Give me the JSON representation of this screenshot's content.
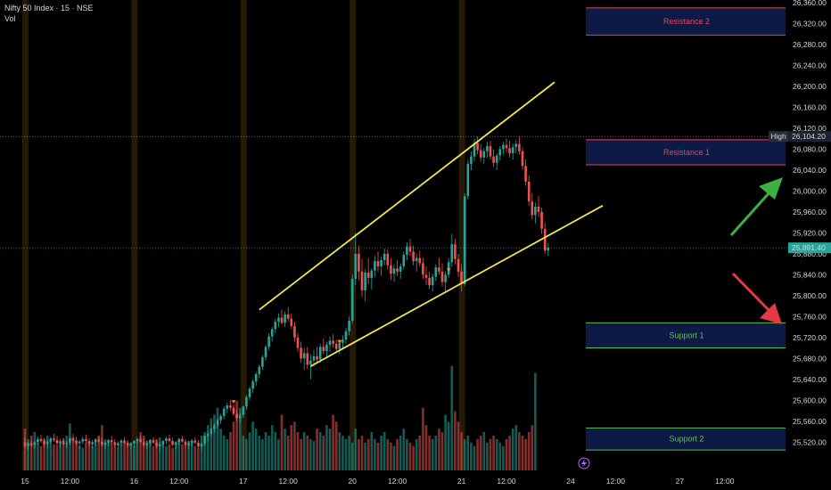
{
  "header": {
    "symbol_line": "Nifty 50 Index · 15 · NSE",
    "volume_label": "Vol"
  },
  "colors": {
    "up": "#26a69a",
    "down": "#ef5350",
    "trendline": "#f4e74b",
    "zone_fill": "#0d1a45",
    "resistance_border": "#e8435a",
    "support_border": "#5cc24f",
    "resistance_text": "#e8435a",
    "support_text": "#5cc24f",
    "arrow_up": "#3cb043",
    "arrow_down": "#e63946",
    "session_band": "#2a1d05",
    "last_price_tag": "#26a69a",
    "high_tag": "#2a2e39"
  },
  "chart_data": {
    "type": "candlestick",
    "y_axis": {
      "min": 25500,
      "max": 26360,
      "ticks": [
        "26,360.00",
        "26,320.00",
        "26,280.00",
        "26,240.00",
        "26,200.00",
        "26,160.00",
        "26,120.00",
        "26,080.00",
        "26,040.00",
        "26,000.00",
        "25,960.00",
        "25,920.00",
        "25,880.00",
        "25,840.00",
        "25,800.00",
        "25,760.00",
        "25,720.00",
        "25,680.00",
        "25,640.00",
        "25,600.00",
        "25,560.00",
        "25,520.00"
      ]
    },
    "x_axis": {
      "ticks": [
        {
          "label": "15",
          "bar": 0
        },
        {
          "label": "12:00",
          "bar": 14
        },
        {
          "label": "16",
          "bar": 34
        },
        {
          "label": "12:00",
          "bar": 48
        },
        {
          "label": "17",
          "bar": 68
        },
        {
          "label": "12:00",
          "bar": 82
        },
        {
          "label": "20",
          "bar": 102
        },
        {
          "label": "12:00",
          "bar": 116
        },
        {
          "label": "21",
          "bar": 136
        },
        {
          "label": "12:00",
          "bar": 150
        },
        {
          "label": "24",
          "bar": 170
        },
        {
          "label": "12:00",
          "bar": 184
        },
        {
          "label": "27",
          "bar": 204
        },
        {
          "label": "12:00",
          "bar": 218
        }
      ]
    },
    "last_price": {
      "value": 25891.4,
      "label": "25,891.40"
    },
    "high": {
      "value": 26104.2,
      "label": "26,104.20",
      "tag": "High"
    },
    "zones": [
      {
        "name": "Resistance 2",
        "kind": "resistance",
        "top": 26350,
        "bottom": 26298
      },
      {
        "name": "Resistance 1",
        "kind": "resistance",
        "top": 26098,
        "bottom": 26050
      },
      {
        "name": "Support 1",
        "kind": "support",
        "top": 25748,
        "bottom": 25700
      },
      {
        "name": "Support 2",
        "kind": "support",
        "top": 25547,
        "bottom": 25505
      }
    ],
    "trendlines": [
      {
        "x1": 73,
        "y1": 25773,
        "x2": 165,
        "y2": 26208
      },
      {
        "x1": 89,
        "y1": 25665,
        "x2": 180,
        "y2": 25972
      }
    ],
    "ohlc": [
      [
        25520,
        25528,
        25508,
        25512
      ],
      [
        25512,
        25520,
        25505,
        25518
      ],
      [
        25518,
        25524,
        25510,
        25514
      ],
      [
        25514,
        25522,
        25508,
        25520
      ],
      [
        25520,
        25530,
        25515,
        25526
      ],
      [
        25526,
        25534,
        25518,
        25522
      ],
      [
        25522,
        25528,
        25510,
        25516
      ],
      [
        25516,
        25524,
        25508,
        25521
      ],
      [
        25521,
        25530,
        25516,
        25527
      ],
      [
        25527,
        25536,
        25520,
        25524
      ],
      [
        25524,
        25532,
        25512,
        25518
      ],
      [
        25518,
        25526,
        25510,
        25522
      ],
      [
        25522,
        25528,
        25514,
        25516
      ],
      [
        25516,
        25522,
        25508,
        25519
      ],
      [
        25519,
        25530,
        25514,
        25527
      ],
      [
        25527,
        25536,
        25520,
        25523
      ],
      [
        25523,
        25530,
        25514,
        25518
      ],
      [
        25518,
        25524,
        25508,
        25521
      ],
      [
        25521,
        25530,
        25516,
        25526
      ],
      [
        25526,
        25534,
        25518,
        25522
      ],
      [
        25522,
        25528,
        25512,
        25516
      ],
      [
        25516,
        25524,
        25508,
        25520
      ],
      [
        25520,
        25528,
        25514,
        25525
      ],
      [
        25525,
        25532,
        25518,
        25521
      ],
      [
        25521,
        25528,
        25512,
        25515
      ],
      [
        25515,
        25522,
        25506,
        25519
      ],
      [
        25519,
        25526,
        25512,
        25524
      ],
      [
        25524,
        25532,
        25518,
        25520
      ],
      [
        25520,
        25526,
        25510,
        25514
      ],
      [
        25514,
        25522,
        25508,
        25518
      ],
      [
        25518,
        25526,
        25512,
        25523
      ],
      [
        25523,
        25530,
        25516,
        25519
      ],
      [
        25519,
        25524,
        25510,
        25513
      ],
      [
        25513,
        25520,
        25506,
        25517
      ],
      [
        25517,
        25524,
        25510,
        25522
      ],
      [
        25522,
        25530,
        25516,
        25526
      ],
      [
        25526,
        25532,
        25518,
        25520
      ],
      [
        25520,
        25526,
        25510,
        25514
      ],
      [
        25514,
        25522,
        25506,
        25518
      ],
      [
        25518,
        25526,
        25512,
        25524
      ],
      [
        25524,
        25530,
        25516,
        25519
      ],
      [
        25519,
        25524,
        25508,
        25512
      ],
      [
        25512,
        25520,
        25504,
        25516
      ],
      [
        25516,
        25524,
        25510,
        25522
      ],
      [
        25522,
        25530,
        25516,
        25527
      ],
      [
        25527,
        25534,
        25518,
        25522
      ],
      [
        25522,
        25528,
        25512,
        25515
      ],
      [
        25515,
        25522,
        25506,
        25520
      ],
      [
        25520,
        25528,
        25514,
        25526
      ],
      [
        25526,
        25532,
        25518,
        25521
      ],
      [
        25521,
        25526,
        25510,
        25514
      ],
      [
        25514,
        25522,
        25506,
        25518
      ],
      [
        25518,
        25526,
        25512,
        25523
      ],
      [
        25523,
        25530,
        25516,
        25519
      ],
      [
        25519,
        25524,
        25508,
        25512
      ],
      [
        25512,
        25520,
        25504,
        25517
      ],
      [
        25517,
        25528,
        25512,
        25532
      ],
      [
        25532,
        25540,
        25522,
        25536
      ],
      [
        25536,
        25548,
        25530,
        25545
      ],
      [
        25545,
        25556,
        25538,
        25552
      ],
      [
        25552,
        25566,
        25546,
        25562
      ],
      [
        25562,
        25574,
        25555,
        25570
      ],
      [
        25570,
        25588,
        25564,
        25584
      ],
      [
        25584,
        25596,
        25576,
        25590
      ],
      [
        25590,
        25600,
        25580,
        25586
      ],
      [
        25586,
        25592,
        25570,
        25574
      ],
      [
        25574,
        25582,
        25560,
        25566
      ],
      [
        25566,
        25576,
        25556,
        25572
      ],
      [
        25572,
        25590,
        25566,
        25588
      ],
      [
        25588,
        25610,
        25582,
        25606
      ],
      [
        25606,
        25626,
        25600,
        25622
      ],
      [
        25622,
        25640,
        25614,
        25636
      ],
      [
        25636,
        25654,
        25628,
        25650
      ],
      [
        25650,
        25668,
        25642,
        25664
      ],
      [
        25664,
        25686,
        25658,
        25682
      ],
      [
        25682,
        25706,
        25676,
        25702
      ],
      [
        25702,
        25728,
        25696,
        25722
      ],
      [
        25722,
        25740,
        25712,
        25736
      ],
      [
        25736,
        25756,
        25728,
        25750
      ],
      [
        25750,
        25766,
        25740,
        25758
      ],
      [
        25758,
        25774,
        25745,
        25748
      ],
      [
        25748,
        25770,
        25740,
        25764
      ],
      [
        25764,
        25778,
        25750,
        25756
      ],
      [
        25756,
        25766,
        25736,
        25742
      ],
      [
        25742,
        25750,
        25712,
        25720
      ],
      [
        25720,
        25728,
        25692,
        25700
      ],
      [
        25700,
        25712,
        25672,
        25680
      ],
      [
        25680,
        25700,
        25658,
        25690
      ],
      [
        25690,
        25702,
        25660,
        25668
      ],
      [
        25668,
        25688,
        25640,
        25676
      ],
      [
        25676,
        25696,
        25664,
        25684
      ],
      [
        25684,
        25702,
        25670,
        25678
      ],
      [
        25678,
        25708,
        25672,
        25702
      ],
      [
        25702,
        25718,
        25688,
        25694
      ],
      [
        25694,
        25712,
        25680,
        25706
      ],
      [
        25706,
        25722,
        25692,
        25714
      ],
      [
        25714,
        25726,
        25700,
        25708
      ],
      [
        25708,
        25716,
        25690,
        25698
      ],
      [
        25698,
        25716,
        25688,
        25710
      ],
      [
        25710,
        25724,
        25700,
        25716
      ],
      [
        25716,
        25738,
        25708,
        25732
      ],
      [
        25732,
        25760,
        25724,
        25752
      ],
      [
        25752,
        25840,
        25746,
        25832
      ],
      [
        25832,
        25920,
        25820,
        25880
      ],
      [
        25880,
        25896,
        25830,
        25846
      ],
      [
        25846,
        25870,
        25798,
        25810
      ],
      [
        25810,
        25850,
        25790,
        25844
      ],
      [
        25844,
        25872,
        25822,
        25834
      ],
      [
        25834,
        25852,
        25812,
        25848
      ],
      [
        25848,
        25876,
        25836,
        25866
      ],
      [
        25866,
        25884,
        25846,
        25856
      ],
      [
        25856,
        25874,
        25838,
        25868
      ],
      [
        25868,
        25890,
        25858,
        25880
      ],
      [
        25880,
        25888,
        25850,
        25858
      ],
      [
        25858,
        25872,
        25830,
        25842
      ],
      [
        25842,
        25860,
        25826,
        25852
      ],
      [
        25852,
        25868,
        25838,
        25846
      ],
      [
        25846,
        25862,
        25832,
        25856
      ],
      [
        25856,
        25884,
        25850,
        25878
      ],
      [
        25878,
        25902,
        25868,
        25894
      ],
      [
        25894,
        25908,
        25876,
        25884
      ],
      [
        25884,
        25896,
        25858,
        25866
      ],
      [
        25866,
        25880,
        25846,
        25872
      ],
      [
        25872,
        25886,
        25856,
        25862
      ],
      [
        25862,
        25872,
        25832,
        25840
      ],
      [
        25840,
        25856,
        25820,
        25834
      ],
      [
        25834,
        25846,
        25812,
        25820
      ],
      [
        25820,
        25842,
        25808,
        25836
      ],
      [
        25836,
        25860,
        25828,
        25854
      ],
      [
        25854,
        25872,
        25840,
        25846
      ],
      [
        25846,
        25862,
        25818,
        25826
      ],
      [
        25826,
        25846,
        25808,
        25840
      ],
      [
        25840,
        25872,
        25834,
        25864
      ],
      [
        25864,
        25918,
        25856,
        25898
      ],
      [
        25898,
        25908,
        25860,
        25870
      ],
      [
        25870,
        25880,
        25836,
        25846
      ],
      [
        25846,
        25860,
        25808,
        25822
      ],
      [
        25822,
        25996,
        25818,
        25990
      ],
      [
        25990,
        26060,
        25984,
        26052
      ],
      [
        26052,
        26076,
        26040,
        26066
      ],
      [
        26066,
        26100,
        26056,
        26092
      ],
      [
        26092,
        26104,
        26070,
        26078
      ],
      [
        26078,
        26090,
        26056,
        26064
      ],
      [
        26064,
        26082,
        26052,
        26076
      ],
      [
        26076,
        26094,
        26064,
        26086
      ],
      [
        26086,
        26096,
        26060,
        26066
      ],
      [
        26066,
        26080,
        26046,
        26054
      ],
      [
        26054,
        26072,
        26040,
        26068
      ],
      [
        26068,
        26086,
        26058,
        26080
      ],
      [
        26080,
        26094,
        26070,
        26088
      ],
      [
        26088,
        26100,
        26074,
        26082
      ],
      [
        26082,
        26096,
        26064,
        26072
      ],
      [
        26072,
        26090,
        26060,
        26084
      ],
      [
        26084,
        26098,
        26072,
        26090
      ],
      [
        26090,
        26104,
        26070,
        26076
      ],
      [
        26076,
        26084,
        26040,
        26048
      ],
      [
        26048,
        26060,
        26010,
        26018
      ],
      [
        26018,
        26030,
        25972,
        25980
      ],
      [
        25980,
        25996,
        25946,
        25954
      ],
      [
        25954,
        25978,
        25938,
        25970
      ],
      [
        25970,
        25990,
        25950,
        25960
      ],
      [
        25960,
        25968,
        25918,
        25928
      ],
      [
        25928,
        25940,
        25880,
        25886
      ],
      [
        25886,
        25900,
        25876,
        25892
      ]
    ],
    "volume": [
      1200,
      900,
      1000,
      1100,
      800,
      700,
      900,
      1000,
      850,
      750,
      700,
      800,
      900,
      1000,
      1350,
      950,
      850,
      700,
      650,
      800,
      750,
      700,
      900,
      1000,
      1300,
      900,
      850,
      800,
      700,
      650,
      750,
      850,
      700,
      800,
      700,
      900,
      1100,
      1000,
      850,
      800,
      700,
      900,
      950,
      850,
      700,
      750,
      650,
      800,
      900,
      750,
      700,
      850,
      800,
      700,
      650,
      1000,
      1100,
      1300,
      1500,
      1600,
      1800,
      1200,
      1000,
      900,
      1100,
      1400,
      2000,
      1800,
      1000,
      900,
      1100,
      1400,
      1200,
      1000,
      900,
      1100,
      1000,
      1300,
      1100,
      900,
      1600,
      1200,
      1000,
      1300,
      1400,
      1100,
      900,
      1100,
      1000,
      900,
      850,
      1200,
      1100,
      1000,
      1300,
      1200,
      1600,
      1400,
      1100,
      1000,
      900,
      1000,
      800,
      1200,
      900,
      1000,
      800,
      900,
      1100,
      900,
      800,
      1000,
      1100,
      900,
      800,
      700,
      900,
      1000,
      1200,
      900,
      800,
      700,
      900,
      1000,
      1800,
      1300,
      1000,
      900,
      1000,
      1200,
      1100,
      1600,
      1400,
      3000,
      1700,
      1400,
      1100,
      900,
      1000,
      800,
      700,
      900,
      1000,
      1100,
      800,
      900,
      1000,
      900,
      800,
      700,
      900,
      1000,
      1200,
      1300,
      1100,
      1000,
      900,
      1100,
      1300,
      2800
    ],
    "volume_max": 3200
  }
}
